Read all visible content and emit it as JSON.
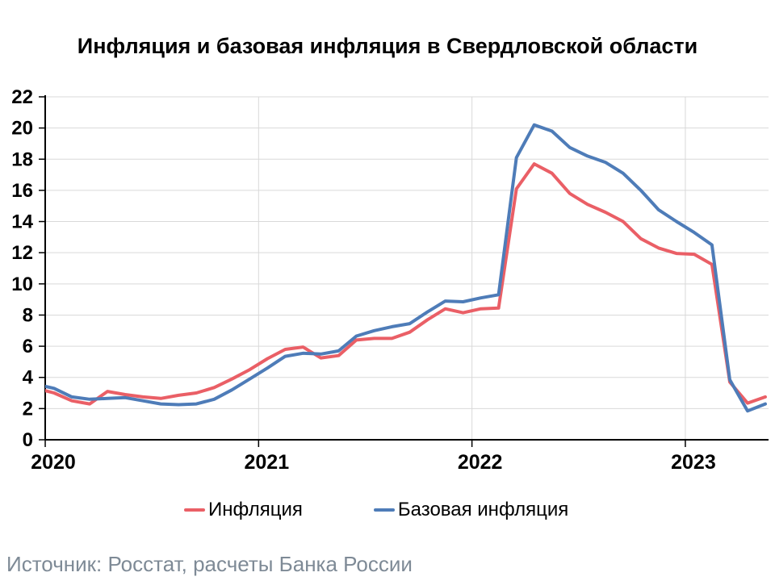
{
  "title": "Инфляция и базовая инфляция в Свердловской области",
  "footer": {
    "source": "Источник: Росстат, расчеты Банка России"
  },
  "legend": [
    {
      "label": "Инфляция",
      "color": "#EA5F66"
    },
    {
      "label": "Базовая инфляция",
      "color": "#4E7CB8"
    }
  ],
  "chart_data": {
    "type": "line",
    "title": "Инфляция и базовая инфляция в Свердловской области",
    "xlabel": "",
    "ylabel": "",
    "ylim": [
      0,
      22
    ],
    "y_ticks": [
      0,
      2,
      4,
      6,
      8,
      10,
      12,
      14,
      16,
      18,
      20,
      22
    ],
    "x_tick_labels": [
      "2020",
      "2021",
      "2022",
      "2023"
    ],
    "x_tick_month_indices": [
      1,
      13,
      25,
      37
    ],
    "grid": true,
    "legend_position": "bottom",
    "months": [
      "2019-12",
      "2020-01",
      "2020-02",
      "2020-03",
      "2020-04",
      "2020-05",
      "2020-06",
      "2020-07",
      "2020-08",
      "2020-09",
      "2020-10",
      "2020-11",
      "2020-12",
      "2021-01",
      "2021-02",
      "2021-03",
      "2021-04",
      "2021-05",
      "2021-06",
      "2021-07",
      "2021-08",
      "2021-09",
      "2021-10",
      "2021-11",
      "2021-12",
      "2022-01",
      "2022-02",
      "2022-03",
      "2022-04",
      "2022-05",
      "2022-06",
      "2022-07",
      "2022-08",
      "2022-09",
      "2022-10",
      "2022-11",
      "2022-12",
      "2023-01",
      "2023-02",
      "2023-03",
      "2023-04",
      "2023-05"
    ],
    "series": [
      {
        "name": "Инфляция",
        "color": "#EA5F66",
        "values": [
          3.3,
          3.0,
          2.5,
          2.3,
          3.1,
          2.9,
          2.75,
          2.65,
          2.85,
          3.0,
          3.35,
          3.9,
          4.5,
          5.2,
          5.8,
          5.95,
          5.25,
          5.4,
          6.4,
          6.5,
          6.5,
          6.9,
          7.7,
          8.4,
          8.15,
          8.4,
          8.45,
          16.1,
          17.7,
          17.1,
          15.8,
          15.1,
          14.6,
          14.0,
          12.9,
          12.3,
          11.95,
          11.9,
          11.25,
          3.7,
          2.35,
          2.75
        ]
      },
      {
        "name": "Базовая инфляция",
        "color": "#4E7CB8",
        "values": [
          3.55,
          3.3,
          2.75,
          2.6,
          2.65,
          2.7,
          2.5,
          2.3,
          2.25,
          2.3,
          2.6,
          3.2,
          3.9,
          4.6,
          5.35,
          5.55,
          5.5,
          5.7,
          6.65,
          7.0,
          7.25,
          7.45,
          8.2,
          8.9,
          8.85,
          9.1,
          9.3,
          18.1,
          20.2,
          19.8,
          18.75,
          18.2,
          17.8,
          17.1,
          16.0,
          14.75,
          14.0,
          13.3,
          12.5,
          3.85,
          1.85,
          2.3
        ]
      }
    ],
    "colors": {
      "gridline": "#D9D9D9",
      "axis": "#000000"
    }
  }
}
